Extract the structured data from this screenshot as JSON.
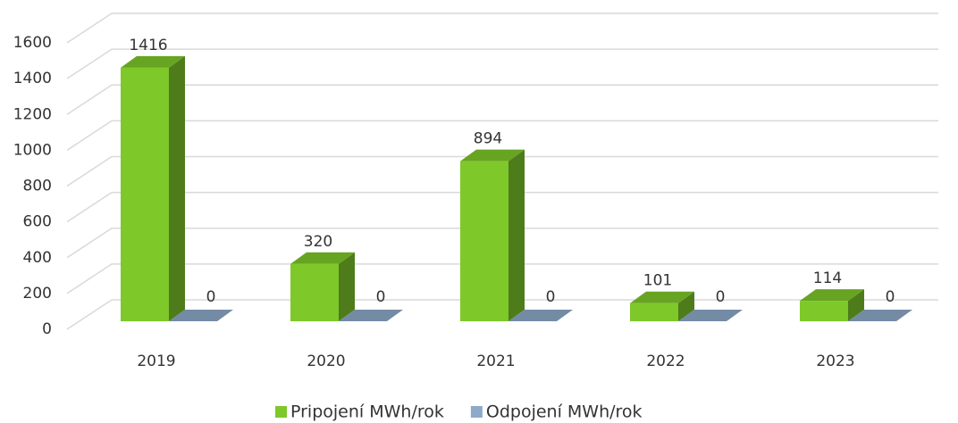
{
  "chart_data": {
    "type": "bar3d",
    "categories": [
      "2019",
      "2020",
      "2021",
      "2022",
      "2023"
    ],
    "series": [
      {
        "name": "Pripojení MWh/rok",
        "color": "#7ec82a",
        "values": [
          1416,
          320,
          894,
          101,
          114
        ]
      },
      {
        "name": "Odpojení MWh/rok",
        "color": "#8ea9c9",
        "values": [
          0,
          0,
          0,
          0,
          0
        ]
      }
    ],
    "ylim": [
      0,
      1600
    ],
    "yticks": [
      0,
      200,
      400,
      600,
      800,
      1000,
      1200,
      1400,
      1600
    ],
    "grid": true,
    "legend": "bottom"
  }
}
